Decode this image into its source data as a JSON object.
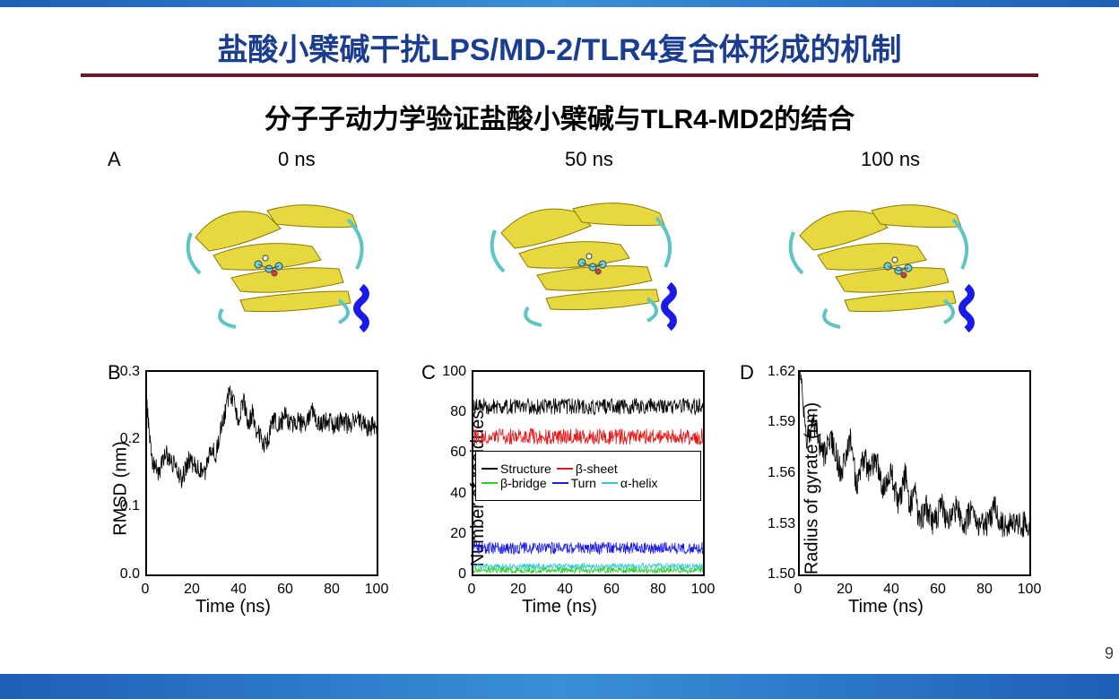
{
  "title": "盐酸小檗碱干扰LPS/MD-2/TLR4复合体形成的机制",
  "subtitle": "分子子动力学验证盐酸小檗碱与TLR4-MD2的结合",
  "page_number": "9",
  "panels": {
    "A": {
      "label": "A",
      "timepoints": [
        "0 ns",
        "50 ns",
        "100 ns"
      ]
    },
    "B": {
      "label": "B",
      "xlabel": "Time (ns)",
      "ylabel": "RMSD (nm)",
      "xlim": [
        0,
        100
      ],
      "ylim": [
        0.0,
        0.3
      ],
      "xticks": [
        0,
        20,
        40,
        60,
        80,
        100
      ],
      "yticks": [
        "0.0",
        "0.1",
        "0.2",
        "0.3"
      ],
      "line_color": "#000000",
      "trace_approx": [
        [
          0,
          0.25
        ],
        [
          2,
          0.17
        ],
        [
          5,
          0.15
        ],
        [
          8,
          0.18
        ],
        [
          12,
          0.16
        ],
        [
          15,
          0.14
        ],
        [
          18,
          0.17
        ],
        [
          22,
          0.16
        ],
        [
          25,
          0.15
        ],
        [
          28,
          0.19
        ],
        [
          30,
          0.18
        ],
        [
          32,
          0.21
        ],
        [
          34,
          0.24
        ],
        [
          36,
          0.27
        ],
        [
          38,
          0.25
        ],
        [
          40,
          0.23
        ],
        [
          42,
          0.26
        ],
        [
          44,
          0.22
        ],
        [
          46,
          0.24
        ],
        [
          48,
          0.21
        ],
        [
          50,
          0.2
        ],
        [
          52,
          0.19
        ],
        [
          55,
          0.23
        ],
        [
          58,
          0.22
        ],
        [
          60,
          0.24
        ],
        [
          62,
          0.22
        ],
        [
          65,
          0.23
        ],
        [
          68,
          0.22
        ],
        [
          72,
          0.24
        ],
        [
          75,
          0.22
        ],
        [
          78,
          0.23
        ],
        [
          82,
          0.22
        ],
        [
          85,
          0.23
        ],
        [
          88,
          0.22
        ],
        [
          92,
          0.23
        ],
        [
          95,
          0.22
        ],
        [
          100,
          0.22
        ]
      ]
    },
    "C": {
      "label": "C",
      "xlabel": "Time (ns)",
      "ylabel": "Number of residues",
      "xlim": [
        0,
        100
      ],
      "ylim": [
        0,
        100
      ],
      "xticks": [
        0,
        20,
        40,
        60,
        80,
        100
      ],
      "yticks": [
        0,
        20,
        40,
        60,
        80,
        100
      ],
      "legend": [
        {
          "label": "Structure",
          "color": "#000000"
        },
        {
          "label": "β-sheet",
          "color": "#e31a1c"
        },
        {
          "label": "β-bridge",
          "color": "#33cc33"
        },
        {
          "label": "Turn",
          "color": "#1a1ae6"
        },
        {
          "label": "α-helix",
          "color": "#33cccc"
        }
      ],
      "series": {
        "structure": {
          "mean": 83,
          "color": "#000000"
        },
        "beta_sheet": {
          "mean": 68,
          "color": "#e31a1c"
        },
        "turn": {
          "mean": 13,
          "color": "#1a1ae6"
        },
        "alpha_helix": {
          "mean": 4,
          "color": "#33cccc"
        },
        "beta_bridge": {
          "mean": 2,
          "color": "#33cc33"
        }
      }
    },
    "D": {
      "label": "D",
      "xlabel": "Time (ns)",
      "ylabel": "Radius of gyrate (nm)",
      "xlim": [
        0,
        100
      ],
      "ylim": [
        1.5,
        1.62
      ],
      "xticks": [
        0,
        20,
        40,
        60,
        80,
        100
      ],
      "yticks": [
        "1.50",
        "1.53",
        "1.56",
        "1.59",
        "1.62"
      ],
      "line_color": "#000000",
      "trace_approx": [
        [
          0,
          1.62
        ],
        [
          3,
          1.58
        ],
        [
          6,
          1.59
        ],
        [
          10,
          1.57
        ],
        [
          14,
          1.58
        ],
        [
          18,
          1.56
        ],
        [
          22,
          1.58
        ],
        [
          25,
          1.55
        ],
        [
          28,
          1.57
        ],
        [
          30,
          1.56
        ],
        [
          33,
          1.57
        ],
        [
          36,
          1.55
        ],
        [
          40,
          1.56
        ],
        [
          43,
          1.54
        ],
        [
          46,
          1.56
        ],
        [
          48,
          1.54
        ],
        [
          50,
          1.55
        ],
        [
          52,
          1.53
        ],
        [
          55,
          1.54
        ],
        [
          58,
          1.53
        ],
        [
          62,
          1.54
        ],
        [
          65,
          1.53
        ],
        [
          68,
          1.54
        ],
        [
          72,
          1.53
        ],
        [
          75,
          1.54
        ],
        [
          78,
          1.53
        ],
        [
          82,
          1.53
        ],
        [
          85,
          1.54
        ],
        [
          88,
          1.53
        ],
        [
          92,
          1.53
        ],
        [
          95,
          1.53
        ],
        [
          100,
          1.53
        ]
      ]
    }
  },
  "colors": {
    "title": "#1a3d8f",
    "hr": "#6b1a2a",
    "protein_sheet": "#e8d840",
    "protein_coil": "#5ec5c5",
    "protein_helix": "#1a1ae6",
    "bar_gradient": [
      "#1e5fb8",
      "#3a8fd8"
    ]
  }
}
